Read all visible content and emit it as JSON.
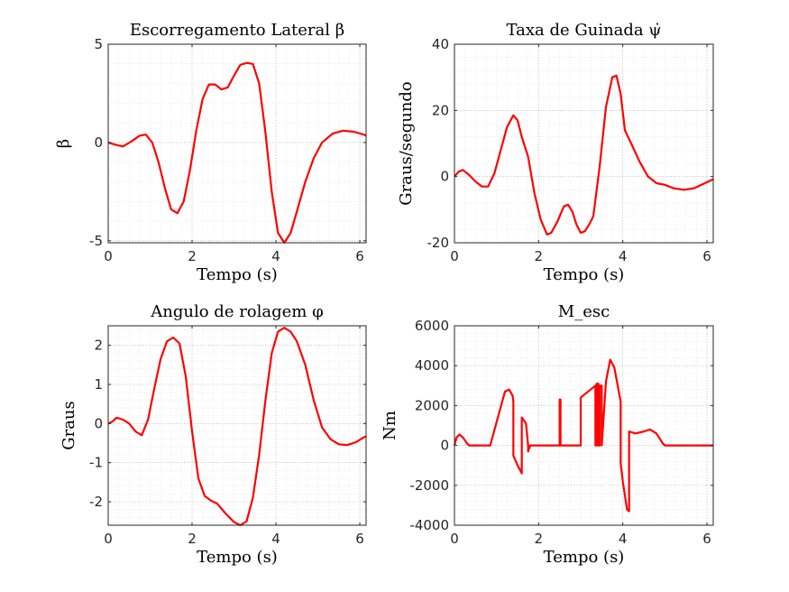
{
  "chart_data": [
    {
      "type": "line",
      "title": "Escorregamento Lateral β",
      "xlabel": "Tempo (s)",
      "ylabel": "β",
      "xlim": [
        0,
        6.15
      ],
      "ylim": [
        -5.1,
        5
      ],
      "xticks": [
        0,
        2,
        4,
        6
      ],
      "yticks": [
        -5,
        0,
        5
      ],
      "grid": true,
      "series": [
        {
          "color": "#ff0000",
          "x": [
            0,
            0.15,
            0.35,
            0.55,
            0.75,
            0.9,
            1.05,
            1.2,
            1.35,
            1.5,
            1.65,
            1.8,
            1.95,
            2.1,
            2.25,
            2.4,
            2.55,
            2.7,
            2.85,
            3.0,
            3.15,
            3.3,
            3.45,
            3.6,
            3.75,
            3.9,
            4.05,
            4.2,
            4.35,
            4.5,
            4.7,
            4.9,
            5.1,
            5.35,
            5.6,
            5.85,
            6.1,
            6.15
          ],
          "y": [
            0.0,
            -0.1,
            -0.2,
            0.05,
            0.35,
            0.4,
            0.0,
            -1.0,
            -2.3,
            -3.4,
            -3.6,
            -3.0,
            -1.4,
            0.6,
            2.2,
            2.95,
            2.95,
            2.7,
            2.8,
            3.4,
            3.95,
            4.05,
            4.0,
            3.0,
            0.5,
            -2.5,
            -4.6,
            -5.1,
            -4.6,
            -3.5,
            -2.0,
            -0.8,
            0.0,
            0.45,
            0.6,
            0.55,
            0.4,
            0.35
          ]
        }
      ]
    },
    {
      "type": "line",
      "title": "Taxa de Guinada ψ̇",
      "xlabel": "Tempo (s)",
      "ylabel": "Graus/segundo",
      "xlim": [
        0,
        6.15
      ],
      "ylim": [
        -20,
        40
      ],
      "xticks": [
        0,
        2,
        4,
        6
      ],
      "yticks": [
        -20,
        0,
        20,
        40
      ],
      "grid": true,
      "series": [
        {
          "color": "#ff0000",
          "x": [
            0,
            0.1,
            0.2,
            0.35,
            0.5,
            0.65,
            0.8,
            0.95,
            1.1,
            1.25,
            1.4,
            1.5,
            1.6,
            1.75,
            1.9,
            2.05,
            2.2,
            2.3,
            2.45,
            2.6,
            2.7,
            2.8,
            2.9,
            3.0,
            3.1,
            3.2,
            3.3,
            3.45,
            3.6,
            3.75,
            3.85,
            3.95,
            4.05,
            4.2,
            4.4,
            4.6,
            4.8,
            5.0,
            5.2,
            5.45,
            5.7,
            5.95,
            6.15
          ],
          "y": [
            0.0,
            1.5,
            2.0,
            0.5,
            -1.5,
            -3.0,
            -3.0,
            1.0,
            8.0,
            15.0,
            18.5,
            17.0,
            12.0,
            6.0,
            -5.0,
            -13.0,
            -17.5,
            -17.0,
            -13.5,
            -9.0,
            -8.5,
            -10.5,
            -14.5,
            -17.0,
            -16.5,
            -14.5,
            -12.0,
            3.0,
            21.0,
            30.0,
            30.5,
            25.0,
            14.0,
            10.0,
            4.5,
            0.0,
            -2.0,
            -2.5,
            -3.5,
            -4.0,
            -3.5,
            -2.0,
            -0.8
          ]
        }
      ]
    },
    {
      "type": "line",
      "title": "Angulo de rolagem φ",
      "xlabel": "Tempo (s)",
      "ylabel": "Graus",
      "xlim": [
        0,
        6.15
      ],
      "ylim": [
        -2.6,
        2.5
      ],
      "xticks": [
        0,
        2,
        4,
        6
      ],
      "yticks": [
        -2,
        -1,
        0,
        1,
        2
      ],
      "grid": true,
      "series": [
        {
          "color": "#ff0000",
          "x": [
            0,
            0.1,
            0.2,
            0.35,
            0.5,
            0.65,
            0.8,
            0.95,
            1.1,
            1.25,
            1.4,
            1.55,
            1.7,
            1.85,
            2.0,
            2.15,
            2.3,
            2.45,
            2.6,
            2.8,
            3.0,
            3.15,
            3.3,
            3.45,
            3.6,
            3.75,
            3.9,
            4.05,
            4.2,
            4.35,
            4.5,
            4.7,
            4.9,
            5.1,
            5.3,
            5.5,
            5.7,
            5.9,
            6.1,
            6.15
          ],
          "y": [
            0.0,
            0.05,
            0.15,
            0.1,
            0.0,
            -0.2,
            -0.3,
            0.1,
            0.9,
            1.65,
            2.1,
            2.2,
            2.05,
            1.2,
            -0.2,
            -1.4,
            -1.85,
            -1.97,
            -2.05,
            -2.3,
            -2.52,
            -2.6,
            -2.5,
            -1.9,
            -0.8,
            0.6,
            1.8,
            2.35,
            2.45,
            2.35,
            2.1,
            1.5,
            0.6,
            -0.1,
            -0.4,
            -0.53,
            -0.55,
            -0.48,
            -0.35,
            -0.33
          ]
        }
      ]
    },
    {
      "type": "line",
      "title": "M_esc",
      "xlabel": "Tempo (s)",
      "ylabel": "Nm",
      "xlim": [
        0,
        6.15
      ],
      "ylim": [
        -4000,
        6000
      ],
      "xticks": [
        0,
        2,
        4,
        6
      ],
      "yticks": [
        -4000,
        -2000,
        0,
        2000,
        4000,
        6000
      ],
      "grid": true,
      "series": [
        {
          "color": "#ff0000",
          "x": [
            0,
            0.05,
            0.12,
            0.2,
            0.3,
            0.35,
            0.85,
            1.2,
            1.3,
            1.38,
            1.4,
            1.4,
            1.5,
            1.6,
            1.6,
            1.7,
            1.75,
            1.75,
            1.8,
            2.5,
            2.5,
            2.52,
            2.52,
            3.0,
            3.0,
            3.35,
            3.35,
            3.38,
            3.38,
            3.42,
            3.42,
            3.45,
            3.45,
            3.5,
            3.5,
            3.6,
            3.7,
            3.8,
            3.95,
            3.95,
            4.0,
            4.1,
            4.15,
            4.15,
            4.3,
            4.5,
            4.65,
            4.8,
            4.95,
            5.0,
            6.15
          ],
          "y": [
            0,
            400,
            550,
            400,
            100,
            0,
            0,
            2700,
            2800,
            2500,
            2200,
            -500,
            -1000,
            -1400,
            1400,
            1100,
            0,
            -300,
            0,
            0,
            2300,
            2300,
            0,
            0,
            2400,
            3000,
            0,
            0,
            3100,
            3100,
            0,
            0,
            3000,
            3000,
            0,
            3200,
            4300,
            3900,
            2200,
            -900,
            -1800,
            -3200,
            -3300,
            700,
            600,
            700,
            800,
            600,
            100,
            0,
            0
          ]
        }
      ]
    }
  ]
}
